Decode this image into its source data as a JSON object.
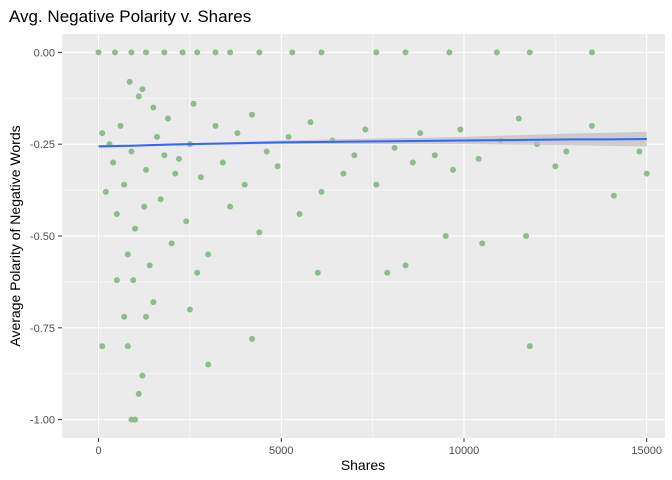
{
  "chart_data": {
    "type": "scatter",
    "title": "Avg. Negative Polarity v. Shares",
    "xlabel": "Shares",
    "ylabel": "Average Polarity of Negative Words",
    "xlim": [
      -1000,
      15500
    ],
    "ylim": [
      -1.05,
      0.05
    ],
    "x_ticks": [
      0,
      5000,
      10000,
      15000
    ],
    "x_tick_labels": [
      "0",
      "5000",
      "10000",
      "15000"
    ],
    "y_ticks": [
      0,
      -0.25,
      -0.5,
      -0.75,
      -1
    ],
    "y_tick_labels": [
      "0.00",
      "-0.25",
      "-0.50",
      "-0.75",
      "-1.00"
    ],
    "grid": true,
    "legend": "none",
    "colors": {
      "points": "#8fbc8f",
      "trend": "#3366ff",
      "band": "#bdbdbd",
      "panel": "#ebebeb",
      "grid": "#ffffff"
    },
    "points": [
      [
        0,
        0
      ],
      [
        450,
        0
      ],
      [
        900,
        0
      ],
      [
        1300,
        0
      ],
      [
        1800,
        0
      ],
      [
        2300,
        0
      ],
      [
        2700,
        0
      ],
      [
        3200,
        0
      ],
      [
        3600,
        0
      ],
      [
        4400,
        0
      ],
      [
        5300,
        0
      ],
      [
        6100,
        0
      ],
      [
        7600,
        0
      ],
      [
        8400,
        0
      ],
      [
        9600,
        0
      ],
      [
        10900,
        0
      ],
      [
        11800,
        0
      ],
      [
        13500,
        0
      ],
      [
        100,
        -0.8
      ],
      [
        500,
        -0.62
      ],
      [
        700,
        -0.72
      ],
      [
        800,
        -0.8
      ],
      [
        900,
        -1.0
      ],
      [
        1000,
        -1.0
      ],
      [
        1100,
        -0.93
      ],
      [
        1200,
        -0.88
      ],
      [
        1300,
        -0.72
      ],
      [
        1500,
        -0.68
      ],
      [
        2500,
        -0.7
      ],
      [
        2700,
        -0.6
      ],
      [
        3000,
        -0.85
      ],
      [
        4200,
        -0.78
      ],
      [
        6000,
        -0.6
      ],
      [
        7900,
        -0.6
      ],
      [
        8400,
        -0.58
      ],
      [
        9500,
        -0.5
      ],
      [
        10500,
        -0.52
      ],
      [
        11700,
        -0.5
      ],
      [
        11800,
        -0.8
      ],
      [
        14100,
        -0.39
      ],
      [
        15000,
        -0.33
      ],
      [
        14800,
        -0.27
      ],
      [
        13500,
        -0.2
      ],
      [
        12800,
        -0.27
      ],
      [
        12500,
        -0.31
      ],
      [
        12000,
        -0.25
      ],
      [
        11500,
        -0.18
      ],
      [
        11000,
        -0.24
      ],
      [
        10400,
        -0.29
      ],
      [
        9900,
        -0.21
      ],
      [
        9700,
        -0.32
      ],
      [
        9200,
        -0.28
      ],
      [
        8800,
        -0.22
      ],
      [
        8600,
        -0.3
      ],
      [
        8100,
        -0.26
      ],
      [
        7600,
        -0.36
      ],
      [
        7300,
        -0.21
      ],
      [
        7000,
        -0.28
      ],
      [
        6700,
        -0.33
      ],
      [
        6400,
        -0.24
      ],
      [
        6100,
        -0.38
      ],
      [
        5800,
        -0.19
      ],
      [
        5500,
        -0.44
      ],
      [
        5200,
        -0.23
      ],
      [
        4900,
        -0.31
      ],
      [
        4600,
        -0.27
      ],
      [
        4400,
        -0.49
      ],
      [
        4200,
        -0.17
      ],
      [
        4000,
        -0.36
      ],
      [
        3800,
        -0.22
      ],
      [
        3600,
        -0.42
      ],
      [
        3400,
        -0.3
      ],
      [
        3200,
        -0.2
      ],
      [
        3000,
        -0.55
      ],
      [
        2800,
        -0.34
      ],
      [
        2600,
        -0.14
      ],
      [
        2400,
        -0.46
      ],
      [
        2200,
        -0.29
      ],
      [
        2000,
        -0.52
      ],
      [
        1900,
        -0.18
      ],
      [
        1700,
        -0.4
      ],
      [
        1600,
        -0.23
      ],
      [
        1400,
        -0.58
      ],
      [
        1300,
        -0.32
      ],
      [
        1100,
        -0.12
      ],
      [
        1000,
        -0.48
      ],
      [
        900,
        -0.27
      ],
      [
        800,
        -0.55
      ],
      [
        700,
        -0.36
      ],
      [
        600,
        -0.2
      ],
      [
        500,
        -0.44
      ],
      [
        400,
        -0.3
      ],
      [
        300,
        -0.25
      ],
      [
        200,
        -0.38
      ],
      [
        100,
        -0.22
      ],
      [
        1200,
        -0.1
      ],
      [
        1500,
        -0.15
      ],
      [
        2100,
        -0.33
      ],
      [
        2500,
        -0.25
      ],
      [
        1800,
        -0.28
      ],
      [
        1250,
        -0.42
      ],
      [
        950,
        -0.62
      ],
      [
        850,
        -0.08
      ]
    ],
    "trend": {
      "x": [
        0,
        1000,
        2000,
        3000,
        4000,
        5000,
        6000,
        7000,
        8000,
        9000,
        10000,
        11000,
        12000,
        13000,
        14000,
        15000
      ],
      "y": [
        -0.256,
        -0.254,
        -0.251,
        -0.249,
        -0.247,
        -0.245,
        -0.244,
        -0.243,
        -0.242,
        -0.241,
        -0.24,
        -0.239,
        -0.238,
        -0.237,
        -0.237,
        -0.236
      ],
      "band_half_width": [
        0.004,
        0.003,
        0.003,
        0.003,
        0.004,
        0.005,
        0.006,
        0.007,
        0.008,
        0.009,
        0.01,
        0.012,
        0.014,
        0.016,
        0.018,
        0.02
      ]
    }
  }
}
